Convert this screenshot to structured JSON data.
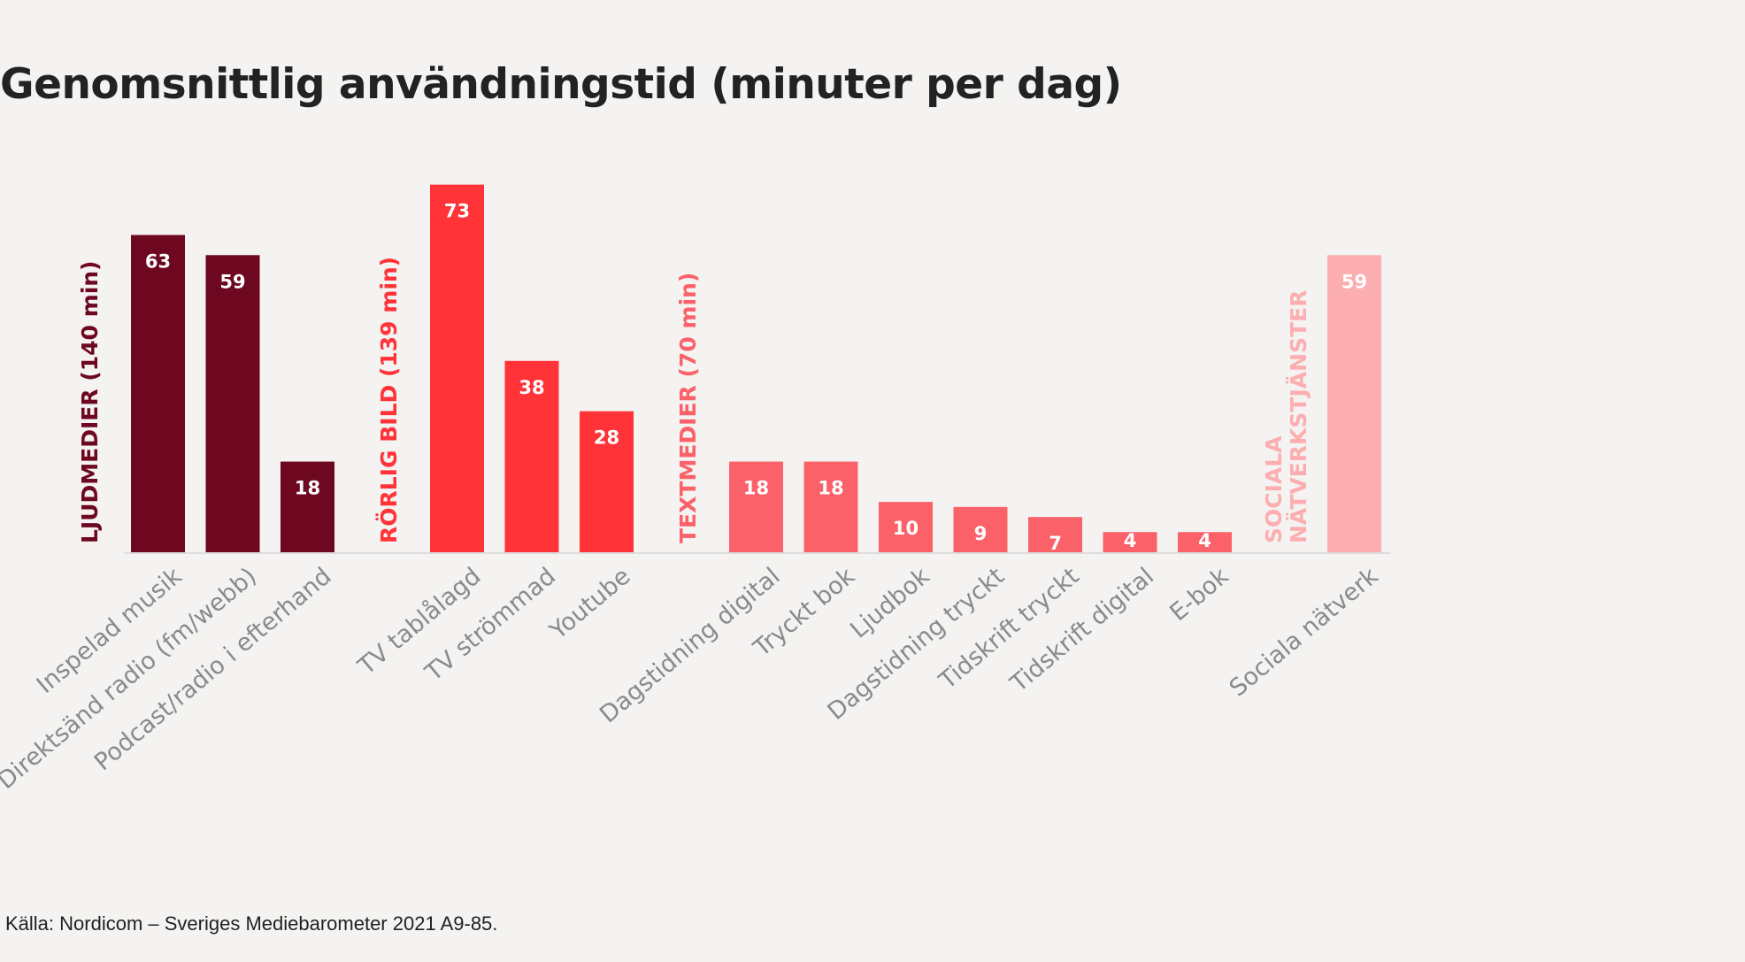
{
  "title": "Genomsnittlig användningstid (minuter per dag)",
  "source": "Källa: Nordicom – Sveriges Mediebarometer 2021 A9-85.",
  "chart_data": {
    "type": "bar",
    "title": "Genomsnittlig användningstid (minuter per dag)",
    "xlabel": "",
    "ylabel": "",
    "ylim": [
      0,
      73
    ],
    "grid": false,
    "groups": [
      {
        "label": "LJUDMEDIER (140 min)",
        "color": "#6e0720",
        "label_color": "#6e0720",
        "value_label_color": "#ffffff",
        "categories": [
          "Inspelad musik",
          "Direktsänd radio (fm/webb)",
          "Podcast/radio i efterhand"
        ],
        "values": [
          63,
          59,
          18
        ]
      },
      {
        "label": "RÖRLIG BILD (139 min)",
        "color": "#ff3338",
        "label_color": "#ff3338",
        "value_label_color": "#ffffff",
        "categories": [
          "TV tablålagd",
          "TV strömmad",
          "Youtube"
        ],
        "values": [
          73,
          38,
          28
        ]
      },
      {
        "label": "TEXTMEDIER (70 min)",
        "color": "#fb6168",
        "label_color": "#fb6168",
        "value_label_color": "#ffffff",
        "categories": [
          "Dagstidning digital",
          "Tryckt bok",
          "Ljudbok",
          "Dagstidning tryckt",
          "Tidskrift tryckt",
          "Tidskrift digital",
          "E-bok"
        ],
        "values": [
          18,
          18,
          10,
          9,
          7,
          4,
          4
        ]
      },
      {
        "label_lines": [
          "SOCIALA",
          "NÄTVERKSTJÄNSTER"
        ],
        "color": "#fdaeb0",
        "label_color": "#fdaeb0",
        "value_label_color": "#ffffff",
        "categories": [
          "Sociala nätverk"
        ],
        "values": [
          59
        ]
      }
    ],
    "axis_label_color": "#8a8a8a"
  }
}
